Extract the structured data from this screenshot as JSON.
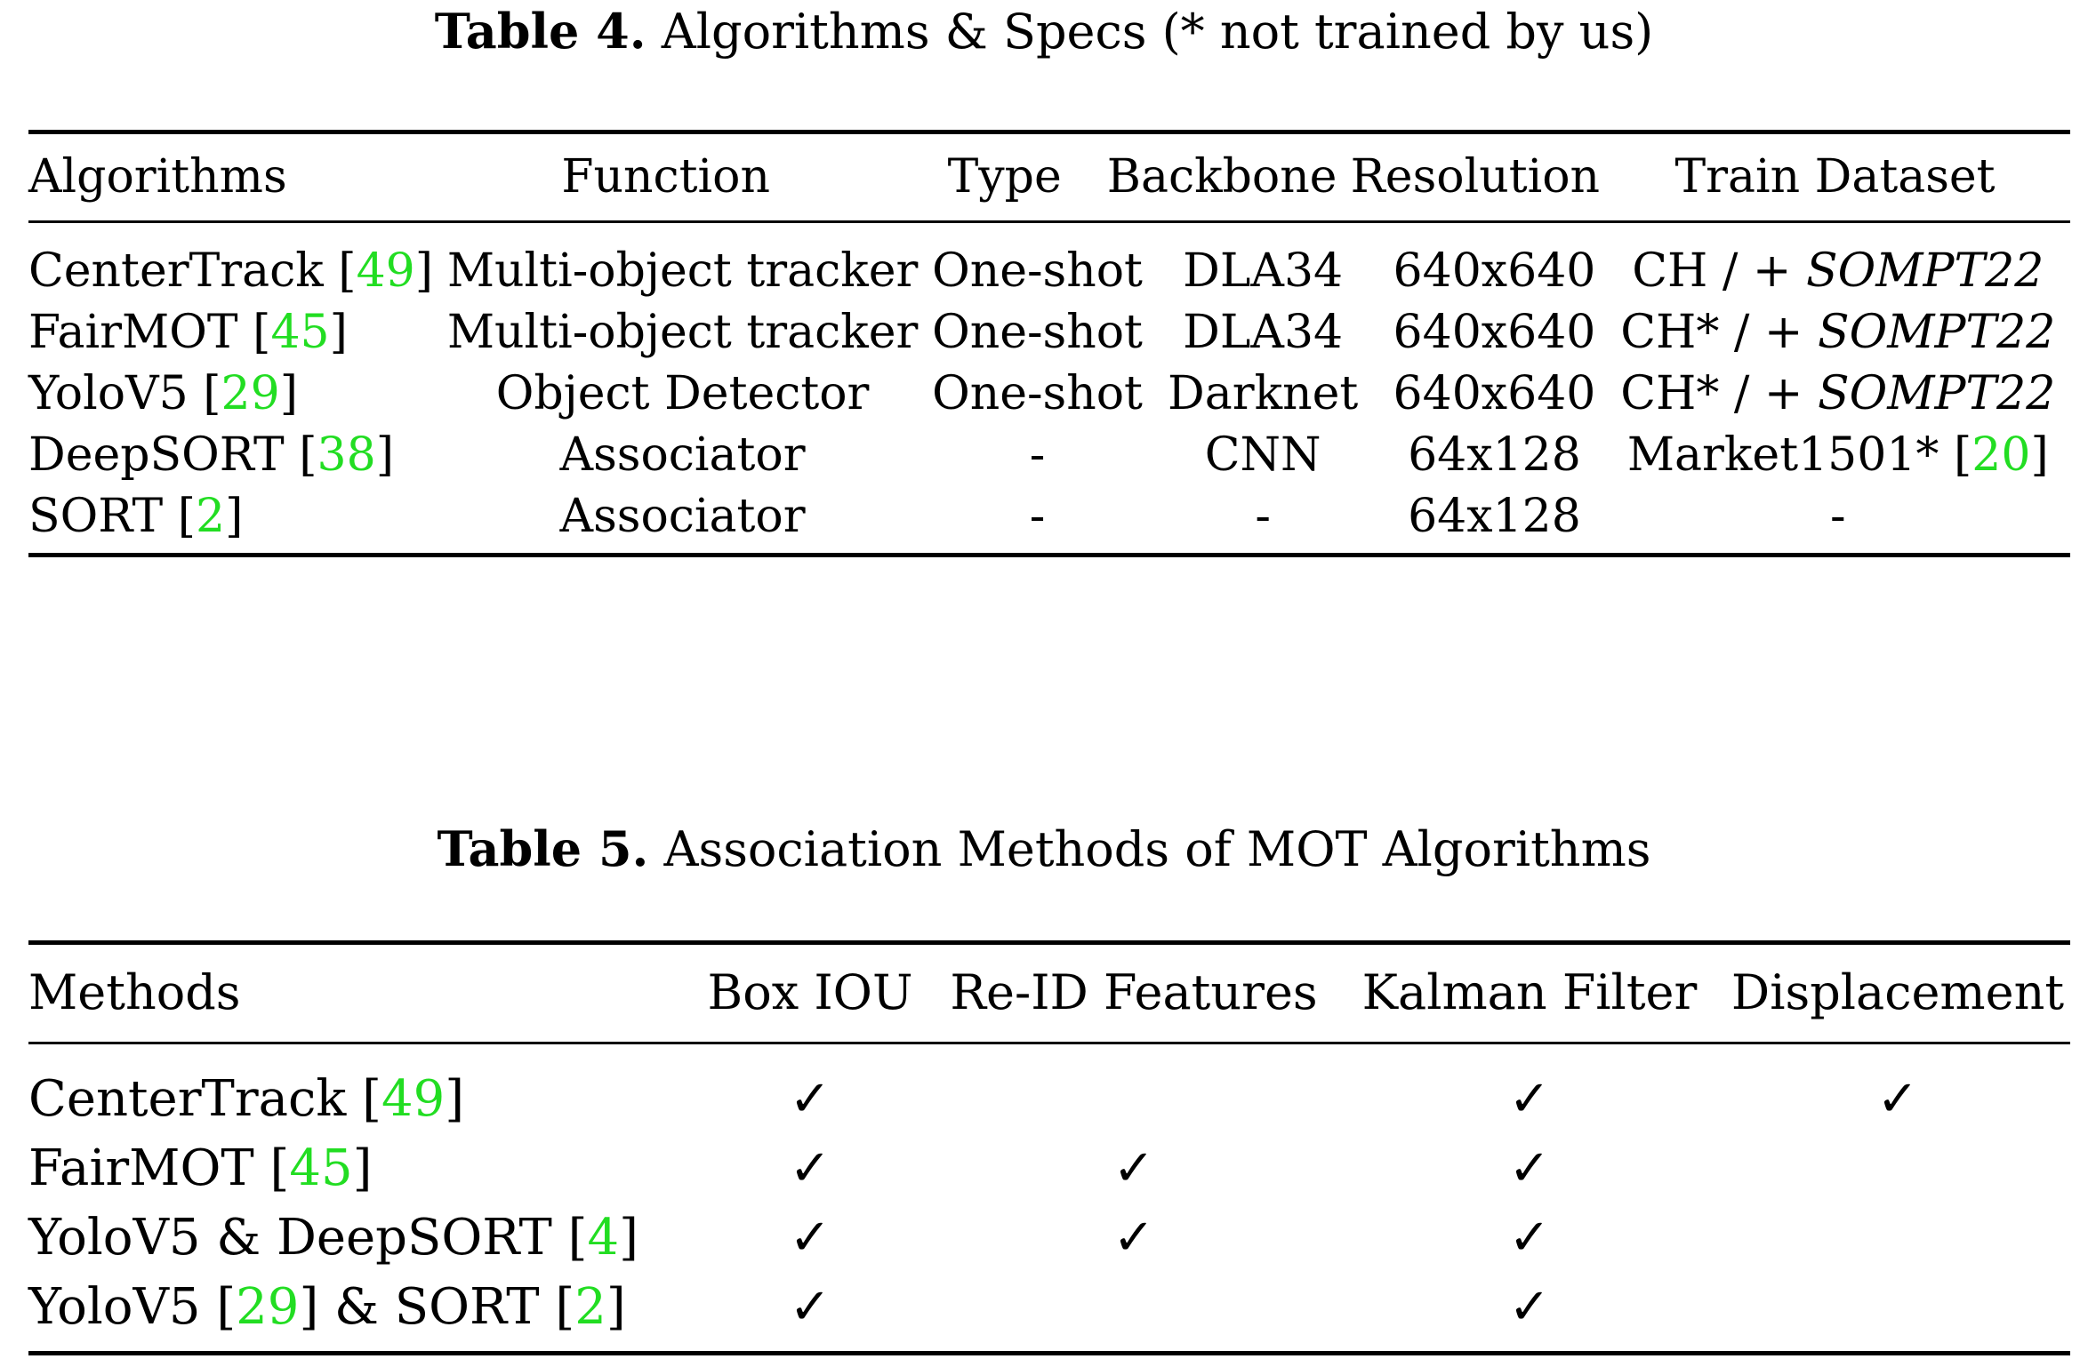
{
  "table4": {
    "label": "Table 4.",
    "title": "Algorithms & Specs (* not trained by us)",
    "headers": [
      "Algorithms",
      "Function",
      "Type",
      "Backbone",
      "Resolution",
      "Train Dataset"
    ],
    "rows": [
      {
        "name": "CenterTrack",
        "cite": "49",
        "function": "Multi-object tracker",
        "type": "One-shot",
        "backbone": "DLA34",
        "resolution": "640x640",
        "dataset_prefix": "CH / + ",
        "dataset_italic": "SOMPT22",
        "dataset_cite": ""
      },
      {
        "name": "FairMOT",
        "cite": "45",
        "function": "Multi-object tracker",
        "type": "One-shot",
        "backbone": "DLA34",
        "resolution": "640x640",
        "dataset_prefix": "CH* / + ",
        "dataset_italic": "SOMPT22",
        "dataset_cite": ""
      },
      {
        "name": "YoloV5",
        "cite": "29",
        "function": "Object Detector",
        "type": "One-shot",
        "backbone": "Darknet",
        "resolution": "640x640",
        "dataset_prefix": "CH* / + ",
        "dataset_italic": "SOMPT22",
        "dataset_cite": ""
      },
      {
        "name": "DeepSORT",
        "cite": "38",
        "function": "Associator",
        "type": "-",
        "backbone": "CNN",
        "resolution": "64x128",
        "dataset_prefix": "Market1501* ",
        "dataset_italic": "",
        "dataset_cite": "20"
      },
      {
        "name": "SORT",
        "cite": "2",
        "function": "Associator",
        "type": "-",
        "backbone": "-",
        "resolution": "64x128",
        "dataset_prefix": "-",
        "dataset_italic": "",
        "dataset_cite": ""
      }
    ]
  },
  "table5": {
    "label": "Table 5.",
    "title": "Association Methods of MOT Algorithms",
    "headers": [
      "Methods",
      "Box IOU",
      "Re-ID Features",
      "Kalman Filter",
      "Displacement"
    ],
    "check_symbol": "✓",
    "rows": [
      {
        "parts": [
          {
            "text": "CenterTrack "
          },
          {
            "cite": "49"
          }
        ],
        "checks": [
          true,
          false,
          true,
          true
        ]
      },
      {
        "parts": [
          {
            "text": "FairMOT "
          },
          {
            "cite": "45"
          }
        ],
        "checks": [
          true,
          true,
          true,
          false
        ]
      },
      {
        "parts": [
          {
            "text": "YoloV5 & DeepSORT "
          },
          {
            "cite": "4"
          }
        ],
        "checks": [
          true,
          true,
          true,
          false
        ]
      },
      {
        "parts": [
          {
            "text": "YoloV5 "
          },
          {
            "cite": "29"
          },
          {
            "text": " & SORT "
          },
          {
            "cite": "2"
          }
        ],
        "checks": [
          true,
          false,
          true,
          false
        ]
      }
    ]
  }
}
